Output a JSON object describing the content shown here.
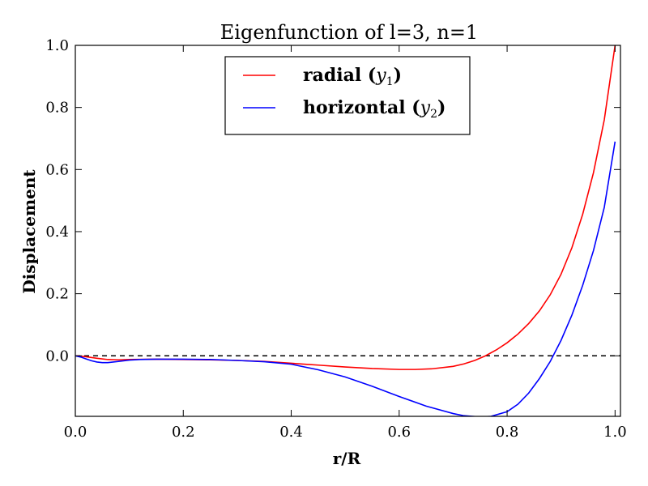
{
  "chart_data": {
    "type": "line",
    "title": "Eigenfunction of l=3, n=1",
    "xlabel": "r/R",
    "ylabel": "Displacement",
    "xlim": [
      0.0,
      1.01
    ],
    "ylim": [
      -0.195,
      1.0
    ],
    "xticks": [
      "0.0",
      "0.2",
      "0.4",
      "0.6",
      "0.8",
      "1.0"
    ],
    "yticks": [
      "0.0",
      "0.2",
      "0.4",
      "0.6",
      "0.8",
      "1.0"
    ],
    "legend_position": "top-center",
    "zero_line": {
      "y": 0.0,
      "style": "dashed",
      "color": "#000000"
    },
    "series": [
      {
        "name": "radial (y1)",
        "legend_text": "radial (",
        "legend_sub": "1",
        "color": "#ff0000",
        "x": [
          0.0,
          0.01,
          0.02,
          0.04,
          0.06,
          0.08,
          0.1,
          0.15,
          0.2,
          0.25,
          0.3,
          0.35,
          0.4,
          0.45,
          0.5,
          0.55,
          0.6,
          0.63,
          0.66,
          0.7,
          0.72,
          0.74,
          0.76,
          0.78,
          0.8,
          0.82,
          0.84,
          0.86,
          0.88,
          0.9,
          0.92,
          0.94,
          0.96,
          0.98,
          1.0
        ],
        "y": [
          0.0,
          -0.001,
          -0.003,
          -0.008,
          -0.012,
          -0.013,
          -0.012,
          -0.011,
          -0.012,
          -0.013,
          -0.015,
          -0.018,
          -0.024,
          -0.03,
          -0.036,
          -0.041,
          -0.044,
          -0.044,
          -0.042,
          -0.034,
          -0.026,
          -0.015,
          0.0,
          0.019,
          0.042,
          0.07,
          0.104,
          0.145,
          0.197,
          0.263,
          0.348,
          0.456,
          0.59,
          0.76,
          1.0
        ]
      },
      {
        "name": "horizontal (y2)",
        "legend_text": "horizontal (",
        "legend_sub": "2",
        "color": "#0000ff",
        "x": [
          0.0,
          0.01,
          0.02,
          0.03,
          0.04,
          0.05,
          0.06,
          0.07,
          0.08,
          0.1,
          0.12,
          0.15,
          0.2,
          0.25,
          0.3,
          0.35,
          0.4,
          0.45,
          0.5,
          0.55,
          0.6,
          0.65,
          0.7,
          0.72,
          0.75,
          0.77,
          0.8,
          0.82,
          0.84,
          0.86,
          0.88,
          0.9,
          0.92,
          0.94,
          0.96,
          0.98,
          1.0
        ],
        "y": [
          0.0,
          -0.004,
          -0.01,
          -0.016,
          -0.02,
          -0.022,
          -0.022,
          -0.02,
          -0.018,
          -0.014,
          -0.012,
          -0.011,
          -0.011,
          -0.012,
          -0.015,
          -0.019,
          -0.027,
          -0.045,
          -0.068,
          -0.098,
          -0.131,
          -0.162,
          -0.186,
          -0.193,
          -0.197,
          -0.195,
          -0.18,
          -0.156,
          -0.12,
          -0.073,
          -0.018,
          0.05,
          0.131,
          0.227,
          0.339,
          0.478,
          0.69
        ]
      }
    ]
  }
}
